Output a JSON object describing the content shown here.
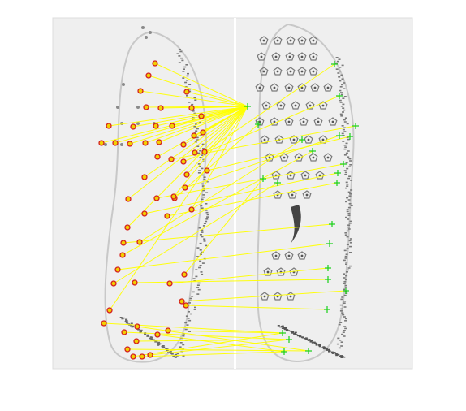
{
  "figure": {
    "panels": [
      "left-sole-print",
      "right-sole-print"
    ],
    "colors": {
      "background": "#ffffff",
      "paper": "#eeeeee",
      "paper_dark": "#e6e6e6",
      "ink": "#555555",
      "match_line": "#ffff00",
      "left_marker_ring": "#d42020",
      "left_marker_fill": "#f2d000",
      "right_marker": "#19d019"
    },
    "marker_styles": {
      "left": "red-circle",
      "right": "green-cross"
    }
  }
}
